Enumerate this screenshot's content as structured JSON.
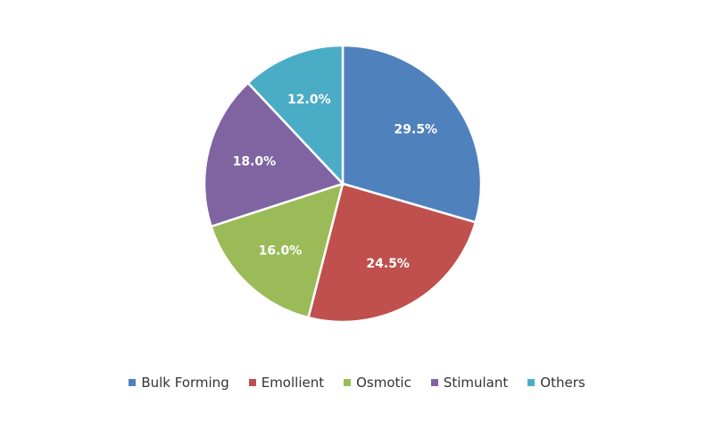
{
  "chart_data": {
    "type": "pie",
    "title": "",
    "legend_placement": "bottom",
    "slices": [
      {
        "name": "Bulk Forming",
        "value": 29.5,
        "label": "29.5%",
        "color": "#4f81bd"
      },
      {
        "name": "Emollient",
        "value": 24.5,
        "label": "24.5%",
        "color": "#c0504d"
      },
      {
        "name": "Osmotic",
        "value": 16.0,
        "label": "16.0%",
        "color": "#9bbb59"
      },
      {
        "name": "Stimulant",
        "value": 18.0,
        "label": "18.0%",
        "color": "#8064a2"
      },
      {
        "name": "Others",
        "value": 12.0,
        "label": "12.0%",
        "color": "#4bacc6"
      }
    ]
  }
}
